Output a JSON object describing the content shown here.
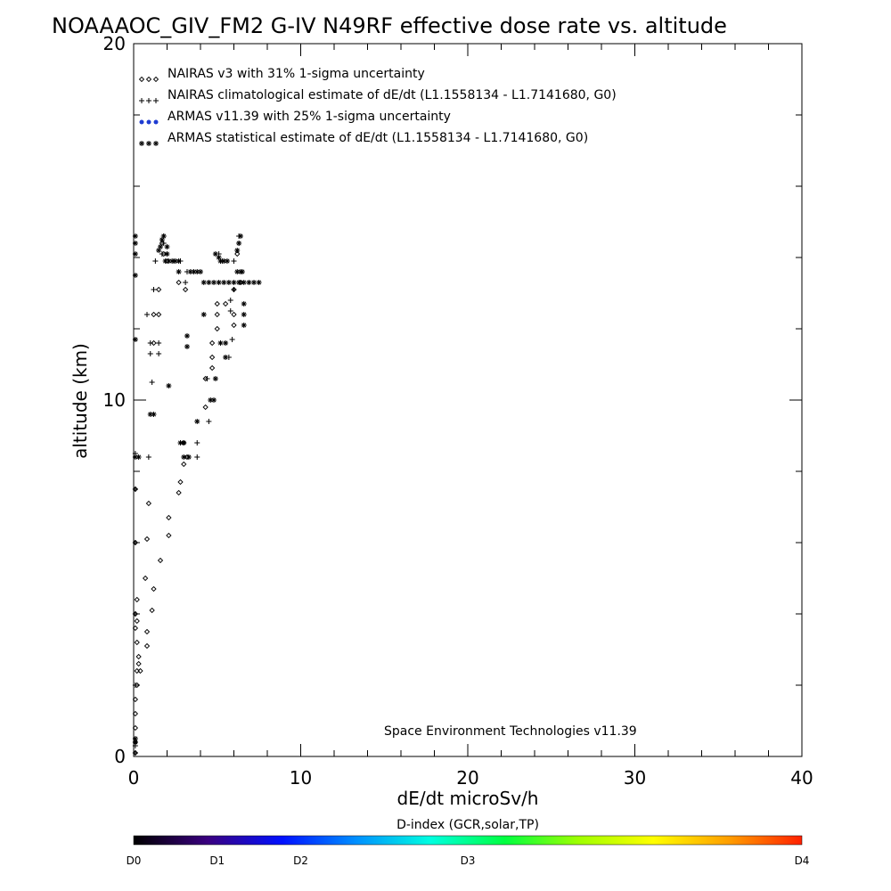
{
  "chart_data": {
    "type": "scatter",
    "title": "NOAAAOC_GIV_FM2 G-IV   N49RF  effective dose rate vs. altitude",
    "xlabel": "dE/dt microSv/h",
    "ylabel": "altitude (km)",
    "xlim": [
      0,
      40
    ],
    "ylim": [
      0,
      20
    ],
    "x_ticks": [
      "0",
      "10",
      "20",
      "30",
      "40"
    ],
    "y_ticks": [
      "0",
      "10",
      "20"
    ],
    "grid": false,
    "legend_placement": "top-left",
    "credit": "Space Environment Technologies v11.39",
    "series": [
      {
        "name": "NAIRAS v3 with 31% 1-sigma uncertainty",
        "marker": "diamond",
        "color": "#000000",
        "points": [
          [
            0.1,
            0.1
          ],
          [
            0.1,
            0.4
          ],
          [
            0.1,
            0.8
          ],
          [
            0.1,
            1.2
          ],
          [
            0.1,
            1.6
          ],
          [
            0.2,
            2.0
          ],
          [
            0.2,
            2.4
          ],
          [
            0.3,
            2.6
          ],
          [
            0.4,
            2.4
          ],
          [
            0.3,
            2.8
          ],
          [
            0.2,
            3.2
          ],
          [
            0.1,
            3.6
          ],
          [
            0.2,
            3.8
          ],
          [
            0.1,
            4.0
          ],
          [
            0.8,
            3.1
          ],
          [
            0.8,
            3.5
          ],
          [
            0.2,
            4.4
          ],
          [
            1.1,
            4.1
          ],
          [
            0.7,
            5.0
          ],
          [
            1.2,
            4.7
          ],
          [
            0.1,
            6.0
          ],
          [
            1.6,
            5.5
          ],
          [
            0.8,
            6.1
          ],
          [
            2.1,
            6.2
          ],
          [
            0.9,
            7.1
          ],
          [
            2.1,
            6.7
          ],
          [
            0.1,
            7.5
          ],
          [
            2.7,
            7.4
          ],
          [
            2.8,
            7.7
          ],
          [
            3.0,
            8.2
          ],
          [
            3.2,
            8.4
          ],
          [
            3.0,
            8.8
          ],
          [
            4.3,
            9.8
          ],
          [
            4.3,
            10.6
          ],
          [
            4.7,
            10.9
          ],
          [
            4.7,
            11.2
          ],
          [
            4.7,
            11.6
          ],
          [
            5.0,
            12.0
          ],
          [
            5.0,
            12.4
          ],
          [
            5.0,
            12.7
          ],
          [
            5.5,
            12.7
          ],
          [
            6.0,
            12.1
          ],
          [
            6.0,
            12.4
          ],
          [
            1.5,
            12.4
          ],
          [
            1.2,
            11.6
          ],
          [
            1.2,
            12.4
          ],
          [
            1.5,
            13.1
          ],
          [
            2.0,
            13.9
          ],
          [
            2.7,
            13.3
          ],
          [
            3.1,
            13.1
          ],
          [
            6.4,
            13.3
          ],
          [
            6.0,
            13.1
          ],
          [
            1.8,
            14.1
          ],
          [
            6.2,
            14.1
          ],
          [
            1.7,
            14.4
          ]
        ]
      },
      {
        "name": "NAIRAS climatological estimate of dE/dt (L1.1558134 - L1.7141680, G0)",
        "marker": "plus",
        "color": "#000000",
        "points": [
          [
            0.1,
            0.1
          ],
          [
            0.1,
            0.3
          ],
          [
            0.1,
            2.0
          ],
          [
            0.1,
            4.0
          ],
          [
            0.1,
            6.0
          ],
          [
            0.1,
            7.5
          ],
          [
            0.1,
            8.5
          ],
          [
            0.9,
            8.4
          ],
          [
            3.8,
            8.4
          ],
          [
            3.8,
            8.8
          ],
          [
            4.5,
            9.4
          ],
          [
            4.8,
            10.0
          ],
          [
            4.4,
            10.6
          ],
          [
            1.1,
            10.5
          ],
          [
            1.0,
            11.3
          ],
          [
            1.0,
            11.6
          ],
          [
            1.5,
            11.3
          ],
          [
            1.5,
            11.6
          ],
          [
            0.8,
            12.4
          ],
          [
            1.2,
            13.1
          ],
          [
            5.7,
            11.2
          ],
          [
            5.9,
            11.7
          ],
          [
            5.8,
            12.5
          ],
          [
            5.8,
            12.8
          ],
          [
            6.0,
            13.1
          ],
          [
            6.4,
            13.3
          ],
          [
            3.1,
            13.3
          ],
          [
            3.2,
            13.6
          ],
          [
            1.3,
            13.9
          ],
          [
            1.7,
            14.1
          ],
          [
            1.6,
            14.3
          ],
          [
            1.8,
            14.4
          ],
          [
            1.8,
            14.6
          ],
          [
            6.3,
            14.4
          ],
          [
            6.3,
            14.6
          ],
          [
            6.0,
            13.9
          ],
          [
            5.3,
            13.9
          ],
          [
            5.1,
            14.1
          ],
          [
            2.4,
            13.9
          ],
          [
            2.8,
            13.9
          ]
        ]
      },
      {
        "name": "ARMAS v11.39 with 25% 1-sigma uncertainty",
        "marker": "dot",
        "color": "#1e3cd2",
        "points": []
      },
      {
        "name": "ARMAS statistical estimate of dE/dt (L1.1558134 - L1.7141680, G0)",
        "marker": "asterisk",
        "color": "#000000",
        "points": [
          [
            0.1,
            0.4
          ],
          [
            0.1,
            0.5
          ],
          [
            0.1,
            11.7
          ],
          [
            0.1,
            13.5
          ],
          [
            0.1,
            14.1
          ],
          [
            0.1,
            14.4
          ],
          [
            0.1,
            14.6
          ],
          [
            0.1,
            8.4
          ],
          [
            0.3,
            8.4
          ],
          [
            2.1,
            10.4
          ],
          [
            1.0,
            9.6
          ],
          [
            1.2,
            9.6
          ],
          [
            2.8,
            8.8
          ],
          [
            3.0,
            8.8
          ],
          [
            3.0,
            8.4
          ],
          [
            3.3,
            8.4
          ],
          [
            3.8,
            9.4
          ],
          [
            4.6,
            10.0
          ],
          [
            4.8,
            10.0
          ],
          [
            4.9,
            10.6
          ],
          [
            3.2,
            11.5
          ],
          [
            3.2,
            11.8
          ],
          [
            4.2,
            12.4
          ],
          [
            5.2,
            11.6
          ],
          [
            5.5,
            11.6
          ],
          [
            5.5,
            11.2
          ],
          [
            6.6,
            12.1
          ],
          [
            6.6,
            12.4
          ],
          [
            6.6,
            12.7
          ],
          [
            4.0,
            13.6
          ],
          [
            3.4,
            13.6
          ],
          [
            3.6,
            13.6
          ],
          [
            3.8,
            13.6
          ],
          [
            2.7,
            13.6
          ],
          [
            4.2,
            13.3
          ],
          [
            4.5,
            13.3
          ],
          [
            4.8,
            13.3
          ],
          [
            5.1,
            13.3
          ],
          [
            5.4,
            13.3
          ],
          [
            5.7,
            13.3
          ],
          [
            6.0,
            13.3
          ],
          [
            6.3,
            13.3
          ],
          [
            6.6,
            13.3
          ],
          [
            6.9,
            13.3
          ],
          [
            7.2,
            13.3
          ],
          [
            7.5,
            13.3
          ],
          [
            6.2,
            13.6
          ],
          [
            6.4,
            13.6
          ],
          [
            6.5,
            13.6
          ],
          [
            1.9,
            13.9
          ],
          [
            2.1,
            13.9
          ],
          [
            2.3,
            13.9
          ],
          [
            2.5,
            13.9
          ],
          [
            2.7,
            13.9
          ],
          [
            5.2,
            13.9
          ],
          [
            5.4,
            13.9
          ],
          [
            5.6,
            13.9
          ],
          [
            1.5,
            14.2
          ],
          [
            1.6,
            14.3
          ],
          [
            1.7,
            14.5
          ],
          [
            1.8,
            14.6
          ],
          [
            2.0,
            14.3
          ],
          [
            2.0,
            14.1
          ],
          [
            6.2,
            14.2
          ],
          [
            6.3,
            14.4
          ],
          [
            6.4,
            14.6
          ],
          [
            5.1,
            14.0
          ],
          [
            4.9,
            14.1
          ]
        ]
      }
    ],
    "colorbar": {
      "title": "D-index (GCR,solar,TP)",
      "labels": [
        {
          "text": "D0",
          "value": 0
        },
        {
          "text": "D1",
          "value": 0.125
        },
        {
          "text": "D2",
          "value": 0.25
        },
        {
          "text": "D3",
          "value": 0.5
        },
        {
          "text": "D4",
          "value": 1.0
        }
      ],
      "stops": [
        "#000000",
        "#3a0080",
        "#0010ff",
        "#0090ff",
        "#00ffe0",
        "#00ff40",
        "#a0ff00",
        "#ffff00",
        "#ffa000",
        "#ff2000"
      ]
    }
  }
}
